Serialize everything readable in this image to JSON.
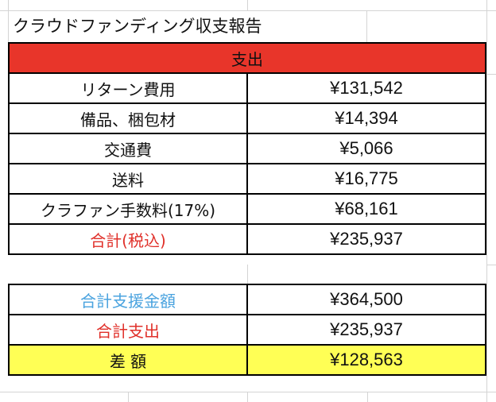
{
  "title": "クラウドファンディング収支報告",
  "header": "支出",
  "expenses": [
    {
      "label": "リターン費用",
      "value": "¥131,542"
    },
    {
      "label": "備品、梱包材",
      "value": "¥14,394"
    },
    {
      "label": "交通費",
      "value": "¥5,066"
    },
    {
      "label": "送料",
      "value": "¥16,775"
    },
    {
      "label": "クラファン手数料(17%)",
      "value": "¥68,161"
    }
  ],
  "total": {
    "label": "合計(税込)",
    "value": "¥235,937"
  },
  "summary": {
    "support": {
      "label": "合計支援金額",
      "value": "¥364,500"
    },
    "expense": {
      "label": "合計支出",
      "value": "¥235,937"
    },
    "difference": {
      "label": "差 額",
      "value": "¥128,563"
    }
  },
  "colors": {
    "header_bg": "#e8352a",
    "difference_bg": "#ffff55",
    "support_text": "#4aa3df",
    "expense_text": "#e0302a"
  }
}
